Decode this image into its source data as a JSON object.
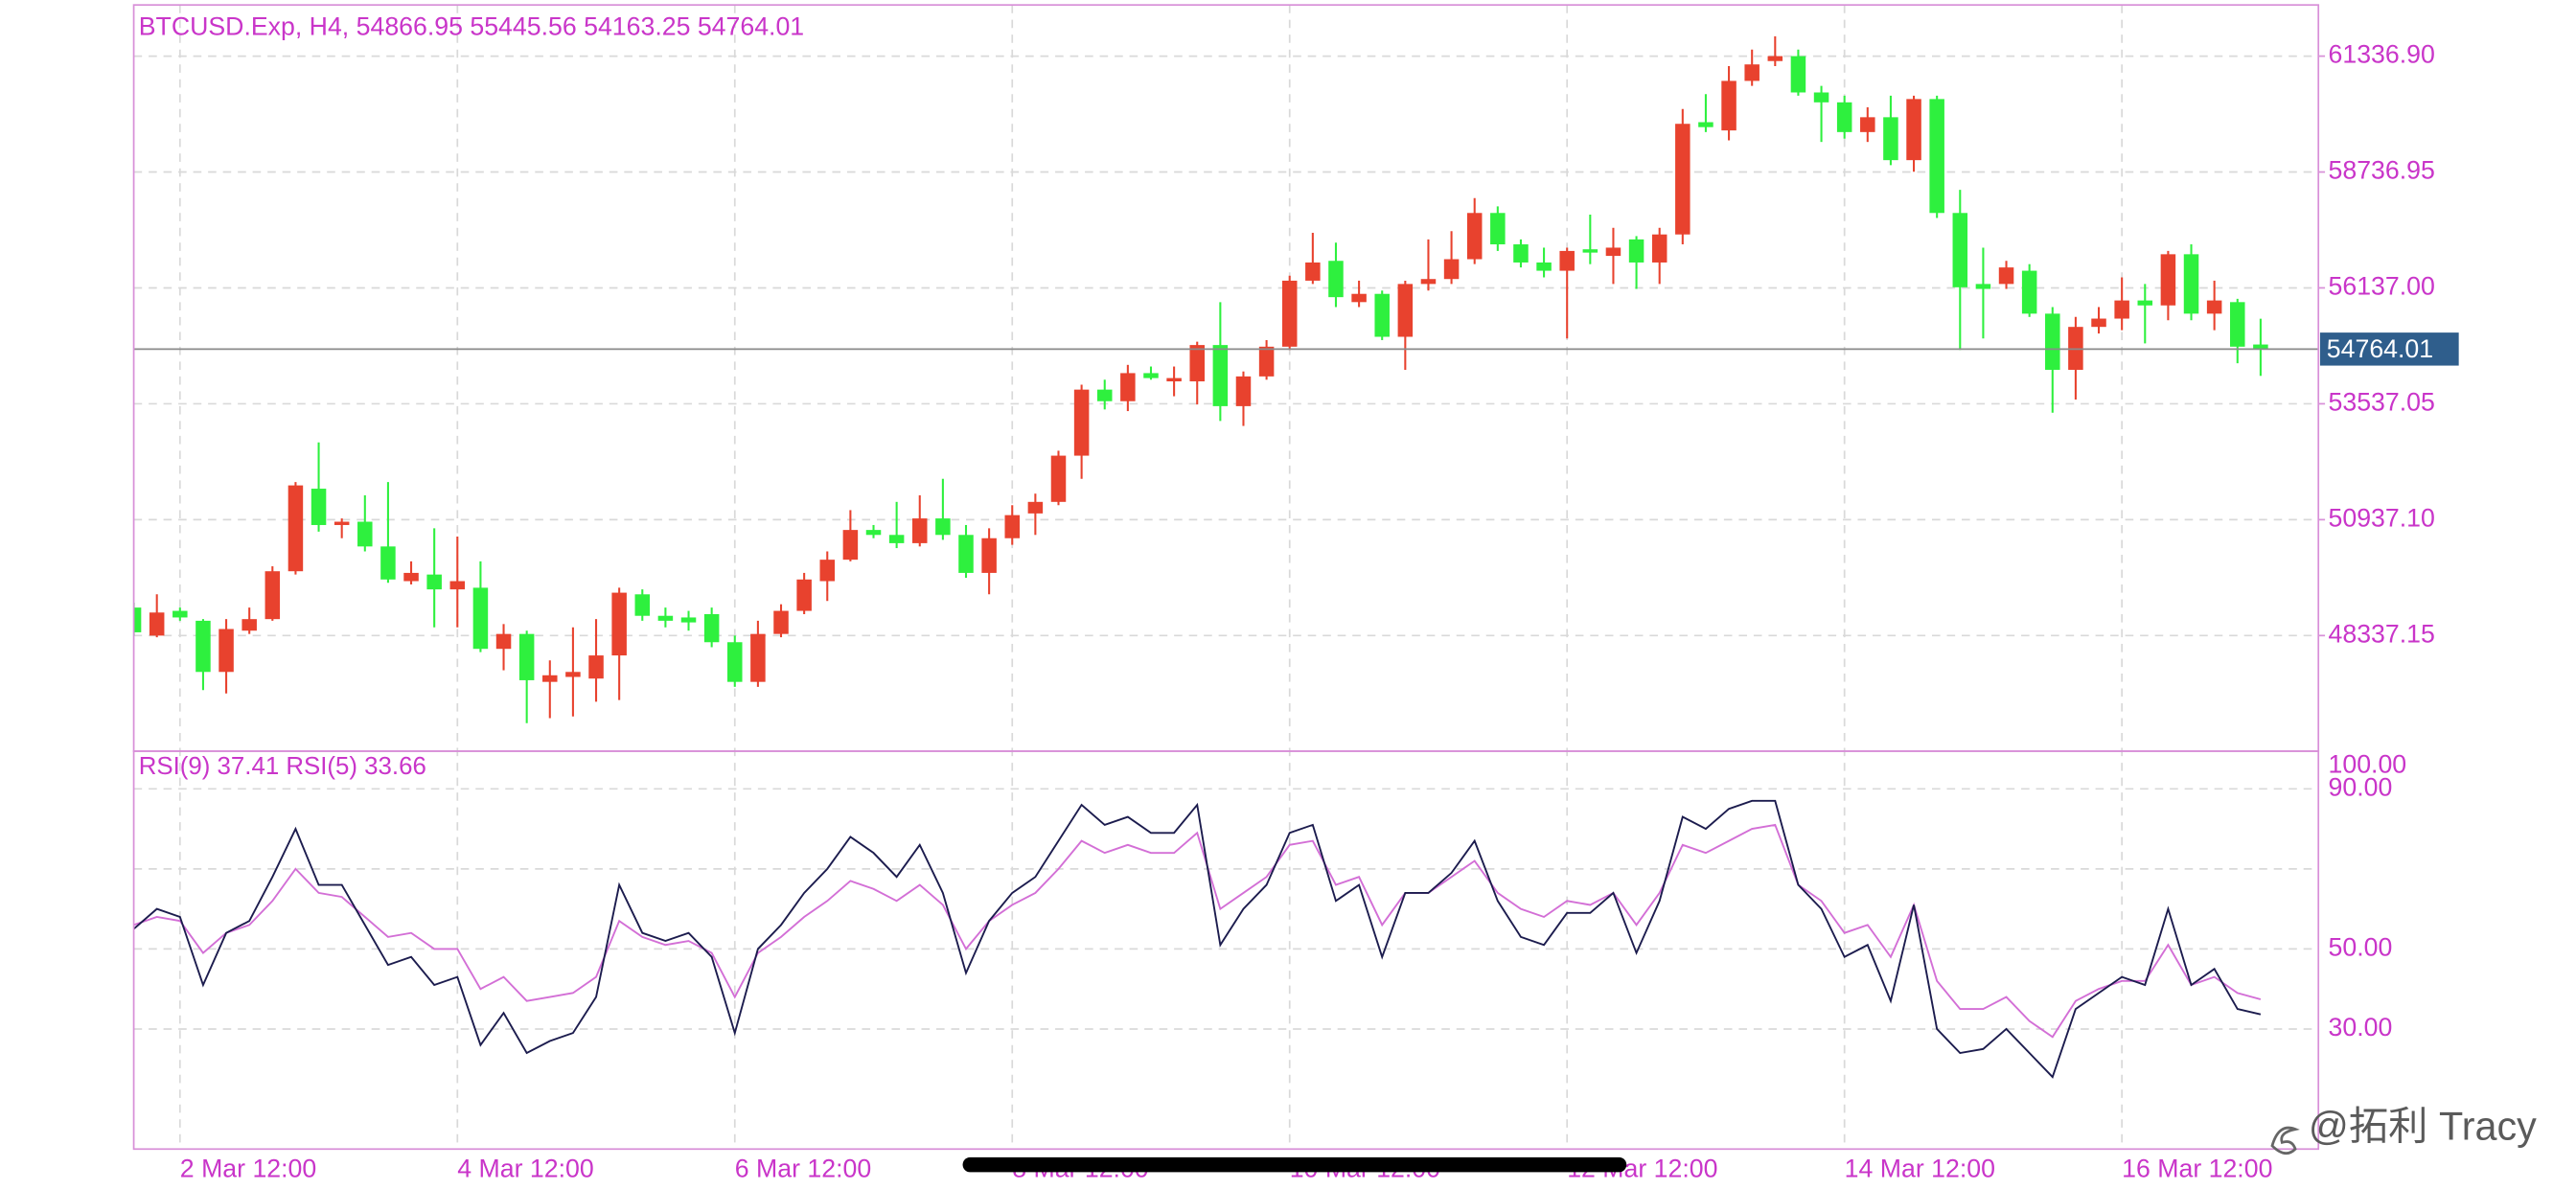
{
  "chart_data": [
    {
      "type": "candlestick",
      "title": "BTCUSD.Exp, H4,",
      "categories": [
        null,
        null,
        "2 Mar 12:00",
        null,
        null,
        null,
        null,
        null,
        null,
        null,
        null,
        null,
        null,
        null,
        "4 Mar 12:00",
        null,
        null,
        null,
        null,
        null,
        null,
        null,
        null,
        null,
        null,
        null,
        "6 Mar 12:00",
        null,
        null,
        null,
        null,
        null,
        null,
        null,
        null,
        null,
        null,
        null,
        "8 Mar 12:00",
        null,
        null,
        null,
        null,
        null,
        null,
        null,
        null,
        null,
        null,
        null,
        "10 Mar 12:00",
        null,
        null,
        null,
        null,
        null,
        null,
        null,
        null,
        null,
        null,
        null,
        "12 Mar 12:00",
        null,
        null,
        null,
        null,
        null,
        null,
        null,
        null,
        null,
        null,
        null,
        "14 Mar 12:00",
        null,
        null,
        null,
        null,
        null,
        null,
        null,
        null,
        null,
        null,
        null,
        "16 Mar 12:00",
        null,
        null,
        null,
        null,
        null,
        null
      ],
      "open": [
        48965,
        48336,
        48891,
        48669,
        47521,
        48447,
        48706,
        49780,
        51632,
        50817,
        50891,
        50336,
        49558,
        49706,
        49373,
        49410,
        48039,
        48373,
        47298,
        47409,
        47372,
        47891,
        49262,
        48780,
        48743,
        48817,
        48188,
        47298,
        48373,
        48891,
        49558,
        50039,
        50706,
        50595,
        50410,
        50965,
        50595,
        49743,
        50521,
        51077,
        51336,
        52373,
        53855,
        53595,
        54225,
        54040,
        54040,
        54855,
        53484,
        54151,
        54818,
        56299,
        56744,
        55818,
        56003,
        55040,
        56225,
        56336,
        56781,
        57818,
        57114,
        56707,
        56522,
        57003,
        56855,
        57225,
        56707,
        57336,
        59855,
        59670,
        60781,
        61226,
        61337,
        60522,
        60300,
        59633,
        59966,
        59003,
        60374,
        57818,
        56225,
        56225,
        56522,
        55559,
        54299,
        55262,
        55448,
        55855,
        55744,
        56892,
        55559,
        55818,
        54866.95
      ],
      "high": [
        49076,
        49262,
        48965,
        48706,
        48706,
        48965,
        49891,
        51780,
        52669,
        50965,
        51484,
        51780,
        50002,
        50743,
        50558,
        50002,
        48595,
        48447,
        47780,
        48521,
        48706,
        49410,
        49373,
        48965,
        48891,
        48965,
        48336,
        48669,
        49039,
        49743,
        50225,
        51151,
        50817,
        51336,
        51484,
        51854,
        50817,
        50743,
        51262,
        51521,
        52484,
        53966,
        54077,
        54410,
        54373,
        54373,
        54929,
        55818,
        54262,
        54966,
        56410,
        57373,
        57151,
        56299,
        56077,
        56299,
        57225,
        57410,
        58151,
        57966,
        57225,
        57040,
        57040,
        57781,
        57485,
        57299,
        57485,
        60151,
        60485,
        61114,
        61485,
        61781,
        61485,
        60670,
        60448,
        60188,
        60448,
        60448,
        60448,
        58336,
        57040,
        56744,
        56670,
        55707,
        55485,
        55707,
        56373,
        56225,
        56966,
        57114,
        56299,
        55892,
        55445.56
      ],
      "low": [
        48336,
        48299,
        48669,
        47113,
        47039,
        48373,
        48669,
        49706,
        50669,
        50521,
        50225,
        49521,
        49484,
        48521,
        48521,
        47965,
        47558,
        46373,
        46484,
        46521,
        46854,
        46891,
        48669,
        48521,
        48447,
        48076,
        47187,
        47187,
        48299,
        48817,
        49113,
        50002,
        50521,
        50299,
        50336,
        50484,
        49632,
        49262,
        50373,
        50595,
        51262,
        51854,
        53410,
        53373,
        54077,
        53706,
        53521,
        53151,
        53040,
        54077,
        54744,
        56225,
        55707,
        55707,
        54966,
        54299,
        56077,
        56225,
        56670,
        56966,
        56596,
        56373,
        55003,
        56670,
        56225,
        56114,
        56225,
        57114,
        59633,
        59448,
        60670,
        61114,
        60448,
        59411,
        59485,
        59411,
        58892,
        58744,
        57707,
        54744,
        55003,
        56114,
        55485,
        53336,
        53633,
        55114,
        55188,
        54892,
        55411,
        55411,
        55188,
        54447,
        54163.25
      ],
      "close": [
        48410,
        48854,
        48743,
        47521,
        48484,
        48706,
        49780,
        51706,
        50817,
        50891,
        50336,
        49595,
        49743,
        49373,
        49558,
        48039,
        48373,
        47335,
        47446,
        47521,
        47891,
        49299,
        48780,
        48669,
        48632,
        48188,
        47298,
        48373,
        48891,
        49595,
        50039,
        50706,
        50595,
        50410,
        50965,
        50595,
        49743,
        50521,
        51039,
        51336,
        52373,
        53855,
        53595,
        54225,
        54114,
        54114,
        54855,
        53484,
        54151,
        54818,
        56299,
        56707,
        55929,
        56003,
        55040,
        56225,
        56336,
        56781,
        57818,
        57114,
        56707,
        56522,
        56966,
        56929,
        57040,
        56707,
        57336,
        59818,
        59744,
        60781,
        61151,
        61337,
        60522,
        60300,
        59633,
        59966,
        59003,
        60374,
        57818,
        56151,
        56114,
        56596,
        55559,
        54299,
        55262,
        55448,
        55855,
        55744,
        56892,
        55559,
        55855,
        54818,
        54764.01
      ],
      "up_color": "#e8422e",
      "down_color": "#2ef03e",
      "ylim": [
        45743,
        62485
      ],
      "yticks": [
        {
          "value": 61336.9,
          "label": "61336.90"
        },
        {
          "value": 58736.95,
          "label": "58736.95"
        },
        {
          "value": 56137,
          "label": "56137.00"
        },
        {
          "value": 53537.05,
          "label": "53537.05"
        },
        {
          "value": 50937.1,
          "label": "50937.10"
        },
        {
          "value": 48337.15,
          "label": "48337.15"
        }
      ],
      "grid": true
    },
    {
      "type": "line",
      "series": [
        {
          "name": "RSI(9)",
          "color": "#d36fd6",
          "values": [
            56,
            58,
            57,
            49,
            54,
            56,
            62,
            70,
            64,
            63,
            58,
            53,
            54,
            50,
            50,
            40,
            43,
            37,
            38,
            39,
            43,
            57,
            53,
            51,
            52,
            49,
            38,
            49,
            53,
            58,
            62,
            67,
            65,
            62,
            66,
            61,
            50,
            57,
            61,
            64,
            70,
            77,
            74,
            76,
            74,
            74,
            79,
            60,
            64,
            68,
            76,
            77,
            66,
            68,
            56,
            64,
            64,
            68,
            72,
            64,
            60,
            58,
            62,
            61,
            64,
            56,
            64,
            76,
            74,
            77,
            80,
            81,
            66,
            62,
            54,
            56,
            48,
            61,
            42,
            35,
            35,
            38,
            32,
            28,
            37,
            40,
            42,
            42,
            51,
            41,
            43,
            39,
            37.41
          ]
        },
        {
          "name": "RSI(5)",
          "color": "#1c1c4e",
          "values": [
            55,
            60,
            58,
            41,
            54,
            57,
            68,
            80,
            66,
            66,
            56,
            46,
            48,
            41,
            43,
            26,
            34,
            24,
            27,
            29,
            38,
            66,
            54,
            52,
            54,
            48,
            29,
            50,
            56,
            64,
            70,
            78,
            74,
            68,
            76,
            64,
            44,
            57,
            64,
            68,
            77,
            86,
            81,
            83,
            79,
            79,
            86,
            51,
            60,
            66,
            79,
            81,
            62,
            66,
            48,
            64,
            64,
            69,
            77,
            62,
            53,
            51,
            59,
            59,
            64,
            49,
            62,
            83,
            80,
            85,
            87,
            87,
            66,
            60,
            48,
            51,
            37,
            61,
            30,
            24,
            25,
            30,
            24,
            18,
            35,
            39,
            43,
            41,
            60,
            41,
            45,
            35,
            33.66
          ]
        }
      ],
      "ylim": [
        0,
        99
      ],
      "yticks": [
        {
          "value": 100,
          "label": "100.00"
        },
        {
          "value": 90,
          "label": "90.00"
        },
        {
          "value": 50,
          "label": "50.00"
        },
        {
          "value": 30,
          "label": "30.00"
        }
      ],
      "levels": [
        90,
        70,
        50,
        30
      ],
      "grid": true
    }
  ],
  "watermark": "@拓利 Tracy"
}
